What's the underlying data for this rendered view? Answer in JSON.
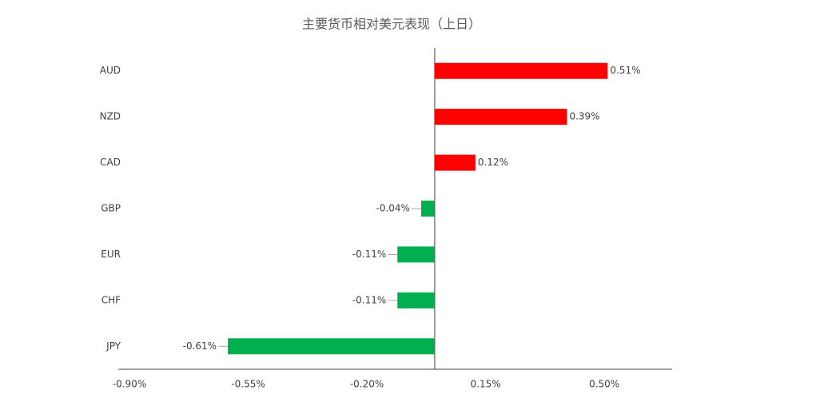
{
  "chart_data": {
    "type": "hbar",
    "title": "主要货币相对美元表现（上日）",
    "categories": [
      "AUD",
      "NZD",
      "CAD",
      "GBP",
      "EUR",
      "CHF",
      "JPY"
    ],
    "values": [
      0.51,
      0.39,
      0.12,
      -0.04,
      -0.11,
      -0.11,
      -0.61
    ],
    "value_labels": [
      "0.51%",
      "0.39%",
      "0.12%",
      "-0.04%",
      "-0.11%",
      "-0.11%",
      "-0.61%"
    ],
    "positive_color": "#ff0000",
    "negative_color": "#00b050",
    "xlim": [
      -0.9,
      0.7
    ],
    "xticks": [
      {
        "value": -0.9,
        "label": "-0.90%"
      },
      {
        "value": -0.55,
        "label": "-0.55%"
      },
      {
        "value": -0.2,
        "label": "-0.20%"
      },
      {
        "value": 0.15,
        "label": "0.15%"
      },
      {
        "value": 0.5,
        "label": "0.50%"
      }
    ]
  }
}
